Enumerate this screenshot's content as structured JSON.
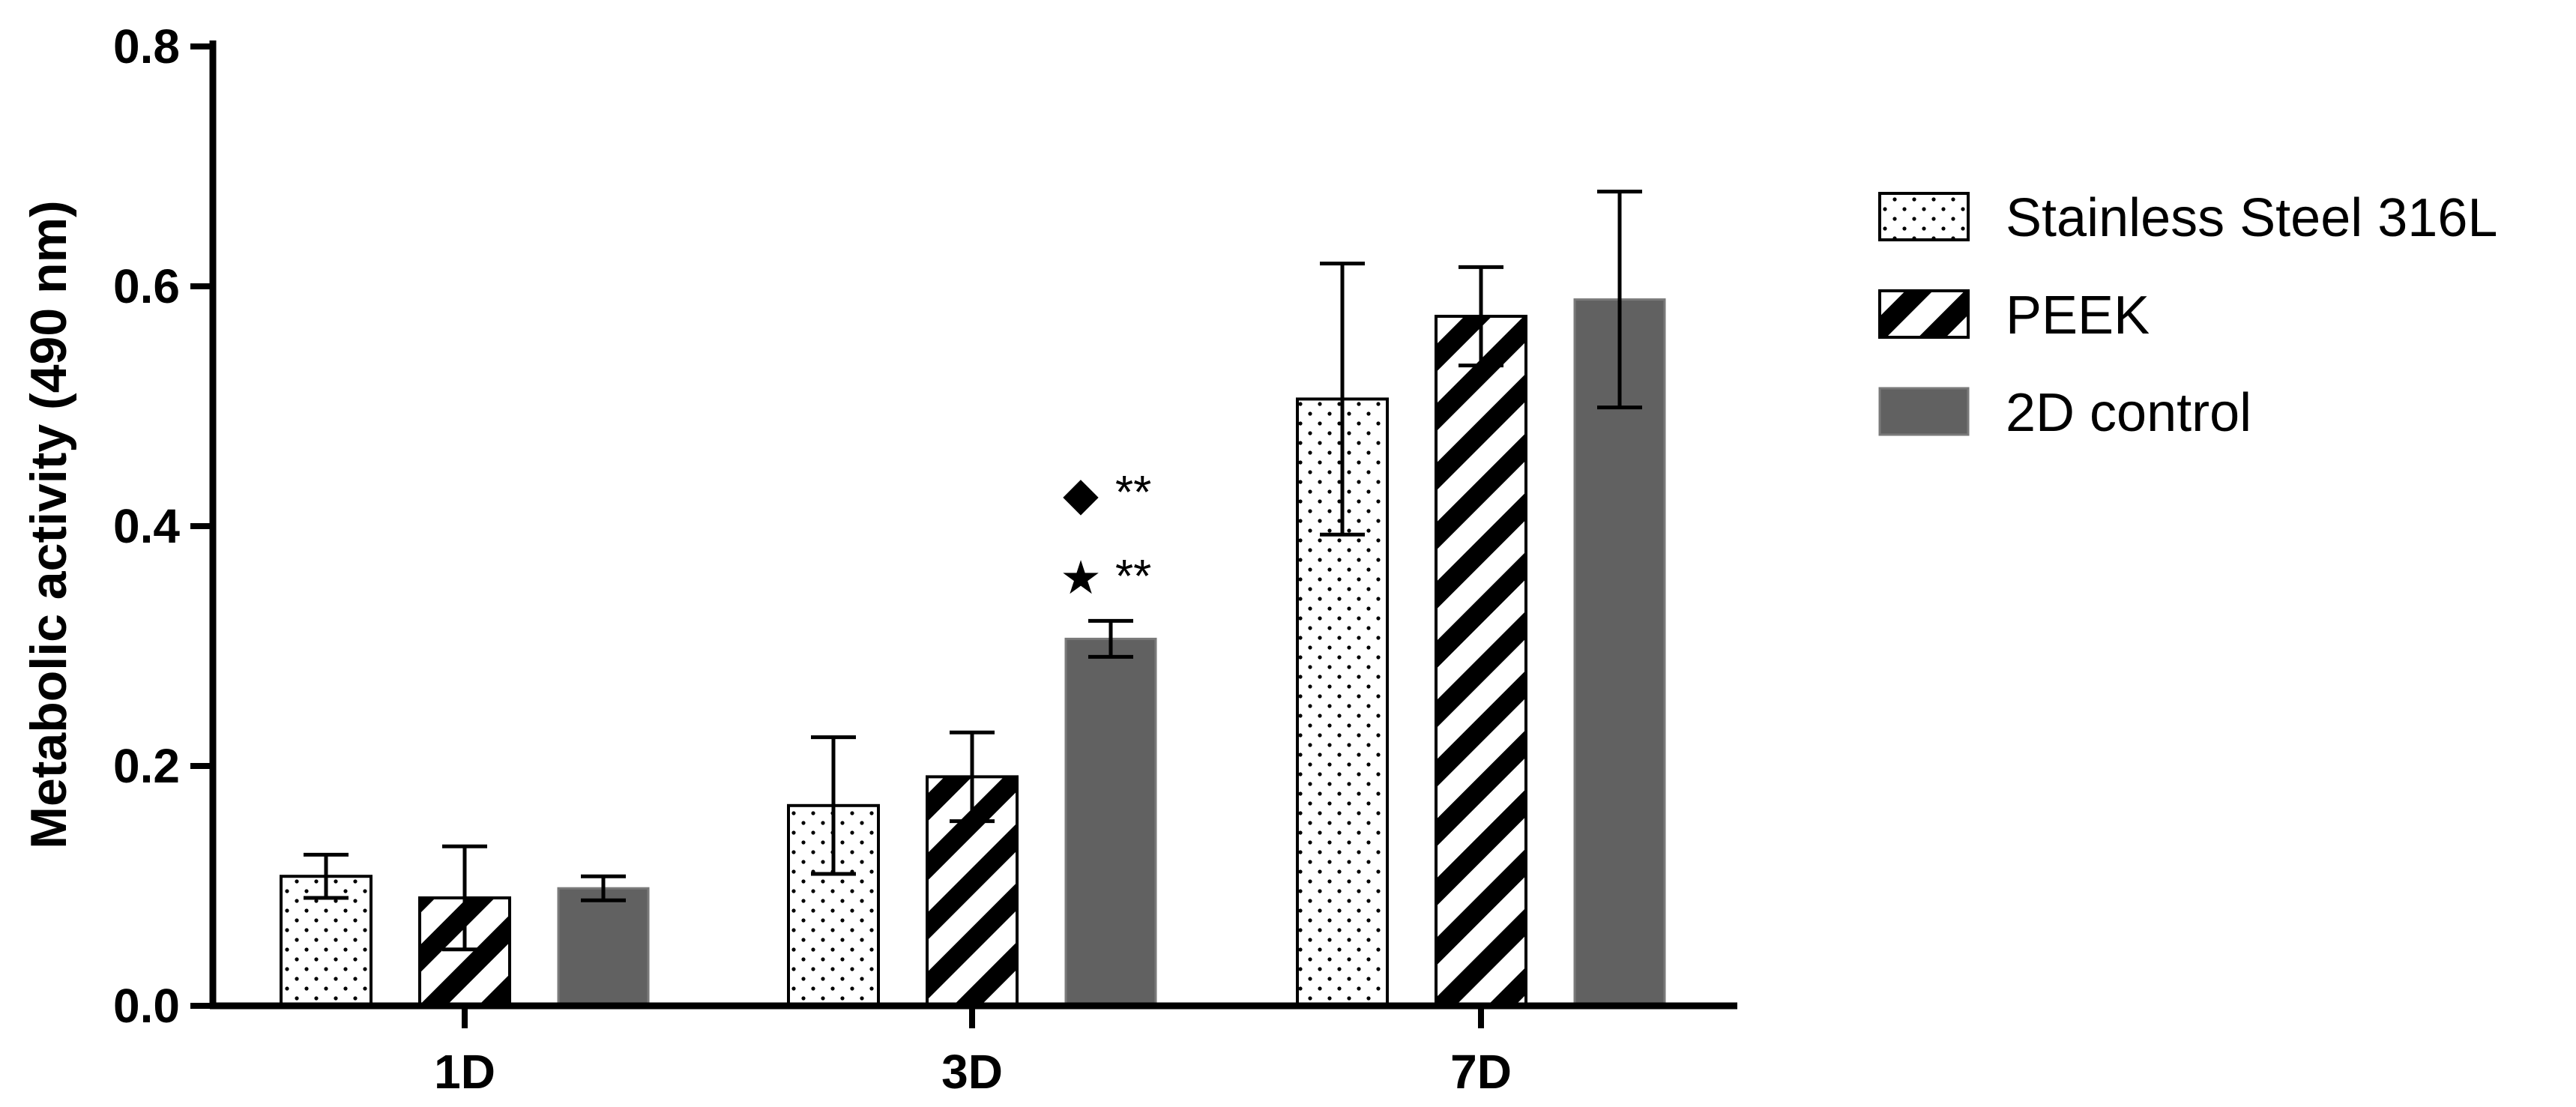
{
  "chart_data": {
    "type": "bar",
    "categories": [
      "1D",
      "3D",
      "7D"
    ],
    "series": [
      {
        "name": "Stainless Steel 316L",
        "pattern": "dots",
        "color": "#ffffff",
        "values": [
          0.108,
          0.167,
          0.506
        ],
        "errors": [
          0.018,
          0.057,
          0.113
        ]
      },
      {
        "name": "PEEK",
        "pattern": "stripes",
        "color": "#ffffff",
        "values": [
          0.09,
          0.191,
          0.575
        ],
        "errors": [
          0.043,
          0.037,
          0.041
        ]
      },
      {
        "name": "2D control",
        "pattern": "solid",
        "color": "#616161",
        "values": [
          0.098,
          0.306,
          0.589
        ],
        "errors": [
          0.01,
          0.015,
          0.09
        ]
      }
    ],
    "ylabel": "Metabolic activity (490 nm)",
    "xlabel": "",
    "ylim": [
      0,
      0.8
    ],
    "yticks": [
      "0.0",
      "0.2",
      "0.4",
      "0.6",
      "0.8"
    ],
    "grid": false,
    "legend_position": "right",
    "annotations": [
      {
        "symbol": "◆",
        "text": "**",
        "category": "3D",
        "series": "2D control"
      },
      {
        "symbol": "★",
        "text": "**",
        "category": "3D",
        "series": "2D control"
      }
    ]
  }
}
